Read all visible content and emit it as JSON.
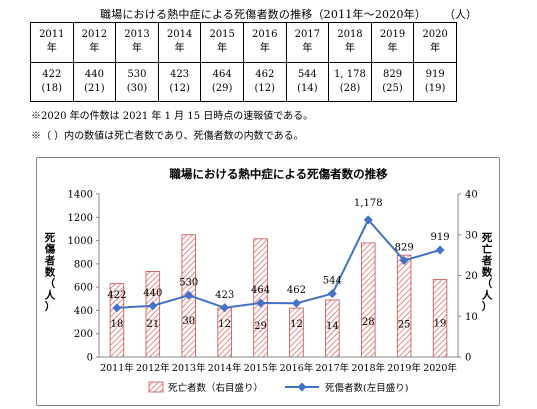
{
  "table": {
    "title": "職場における熱中症による死傷者数の推移（2011年～2020年）",
    "unit": "（人）",
    "years": [
      "2011",
      "2012",
      "2013",
      "2014",
      "2015",
      "2016",
      "2017",
      "2018",
      "2019",
      "2020"
    ],
    "year_suffix": "年",
    "casualties": [
      "422",
      "440",
      "530",
      "423",
      "464",
      "462",
      "544",
      "1, 178",
      "829",
      "919"
    ],
    "deaths": [
      "(18)",
      "(21)",
      "(30)",
      "(12)",
      "(29)",
      "(12)",
      "(14)",
      "(28)",
      "(25)",
      "(19)"
    ]
  },
  "notes": {
    "note1": "※2020 年の件数は 2021 年 1 月 15 日時点の速報値である。",
    "note2": "※（ ）内の数値は死亡者数であり、死傷者数の内数である。"
  },
  "chart_data": {
    "type": "bar+line",
    "title": "職場における熱中症による死傷者数の推移",
    "categories": [
      "2011年",
      "2012年",
      "2013年",
      "2014年",
      "2015年",
      "2016年",
      "2017年",
      "2018年",
      "2019年",
      "2020年"
    ],
    "series": [
      {
        "name": "死亡者数（右目盛り）",
        "type": "bar",
        "axis": "right",
        "values": [
          18,
          21,
          30,
          12,
          29,
          12,
          14,
          28,
          25,
          19
        ]
      },
      {
        "name": "死傷者数(左目盛り)",
        "type": "line",
        "axis": "left",
        "values": [
          422,
          440,
          530,
          423,
          464,
          462,
          544,
          1178,
          829,
          919
        ]
      }
    ],
    "point_labels": [
      "422",
      "440",
      "530",
      "423",
      "464",
      "462",
      "544",
      "1,178",
      "829",
      "919"
    ],
    "bar_labels": [
      "18",
      "21",
      "30",
      "12",
      "29",
      "12",
      "14",
      "28",
      "25",
      "19"
    ],
    "ylabel_left": "死傷者数（人）",
    "ylabel_right": "死亡者数（人）",
    "ylim_left": [
      0,
      1400
    ],
    "yticks_left": [
      "0",
      "200",
      "400",
      "600",
      "800",
      "1000",
      "1200",
      "1400"
    ],
    "ylim_right": [
      0,
      40
    ],
    "yticks_right": [
      "0",
      "10",
      "20",
      "30",
      "40"
    ],
    "grid": false,
    "legend": "bottom",
    "colors": {
      "bar_stroke": "#c0504d",
      "bar_hatch": "#d9534f",
      "line": "#4472c4"
    }
  }
}
